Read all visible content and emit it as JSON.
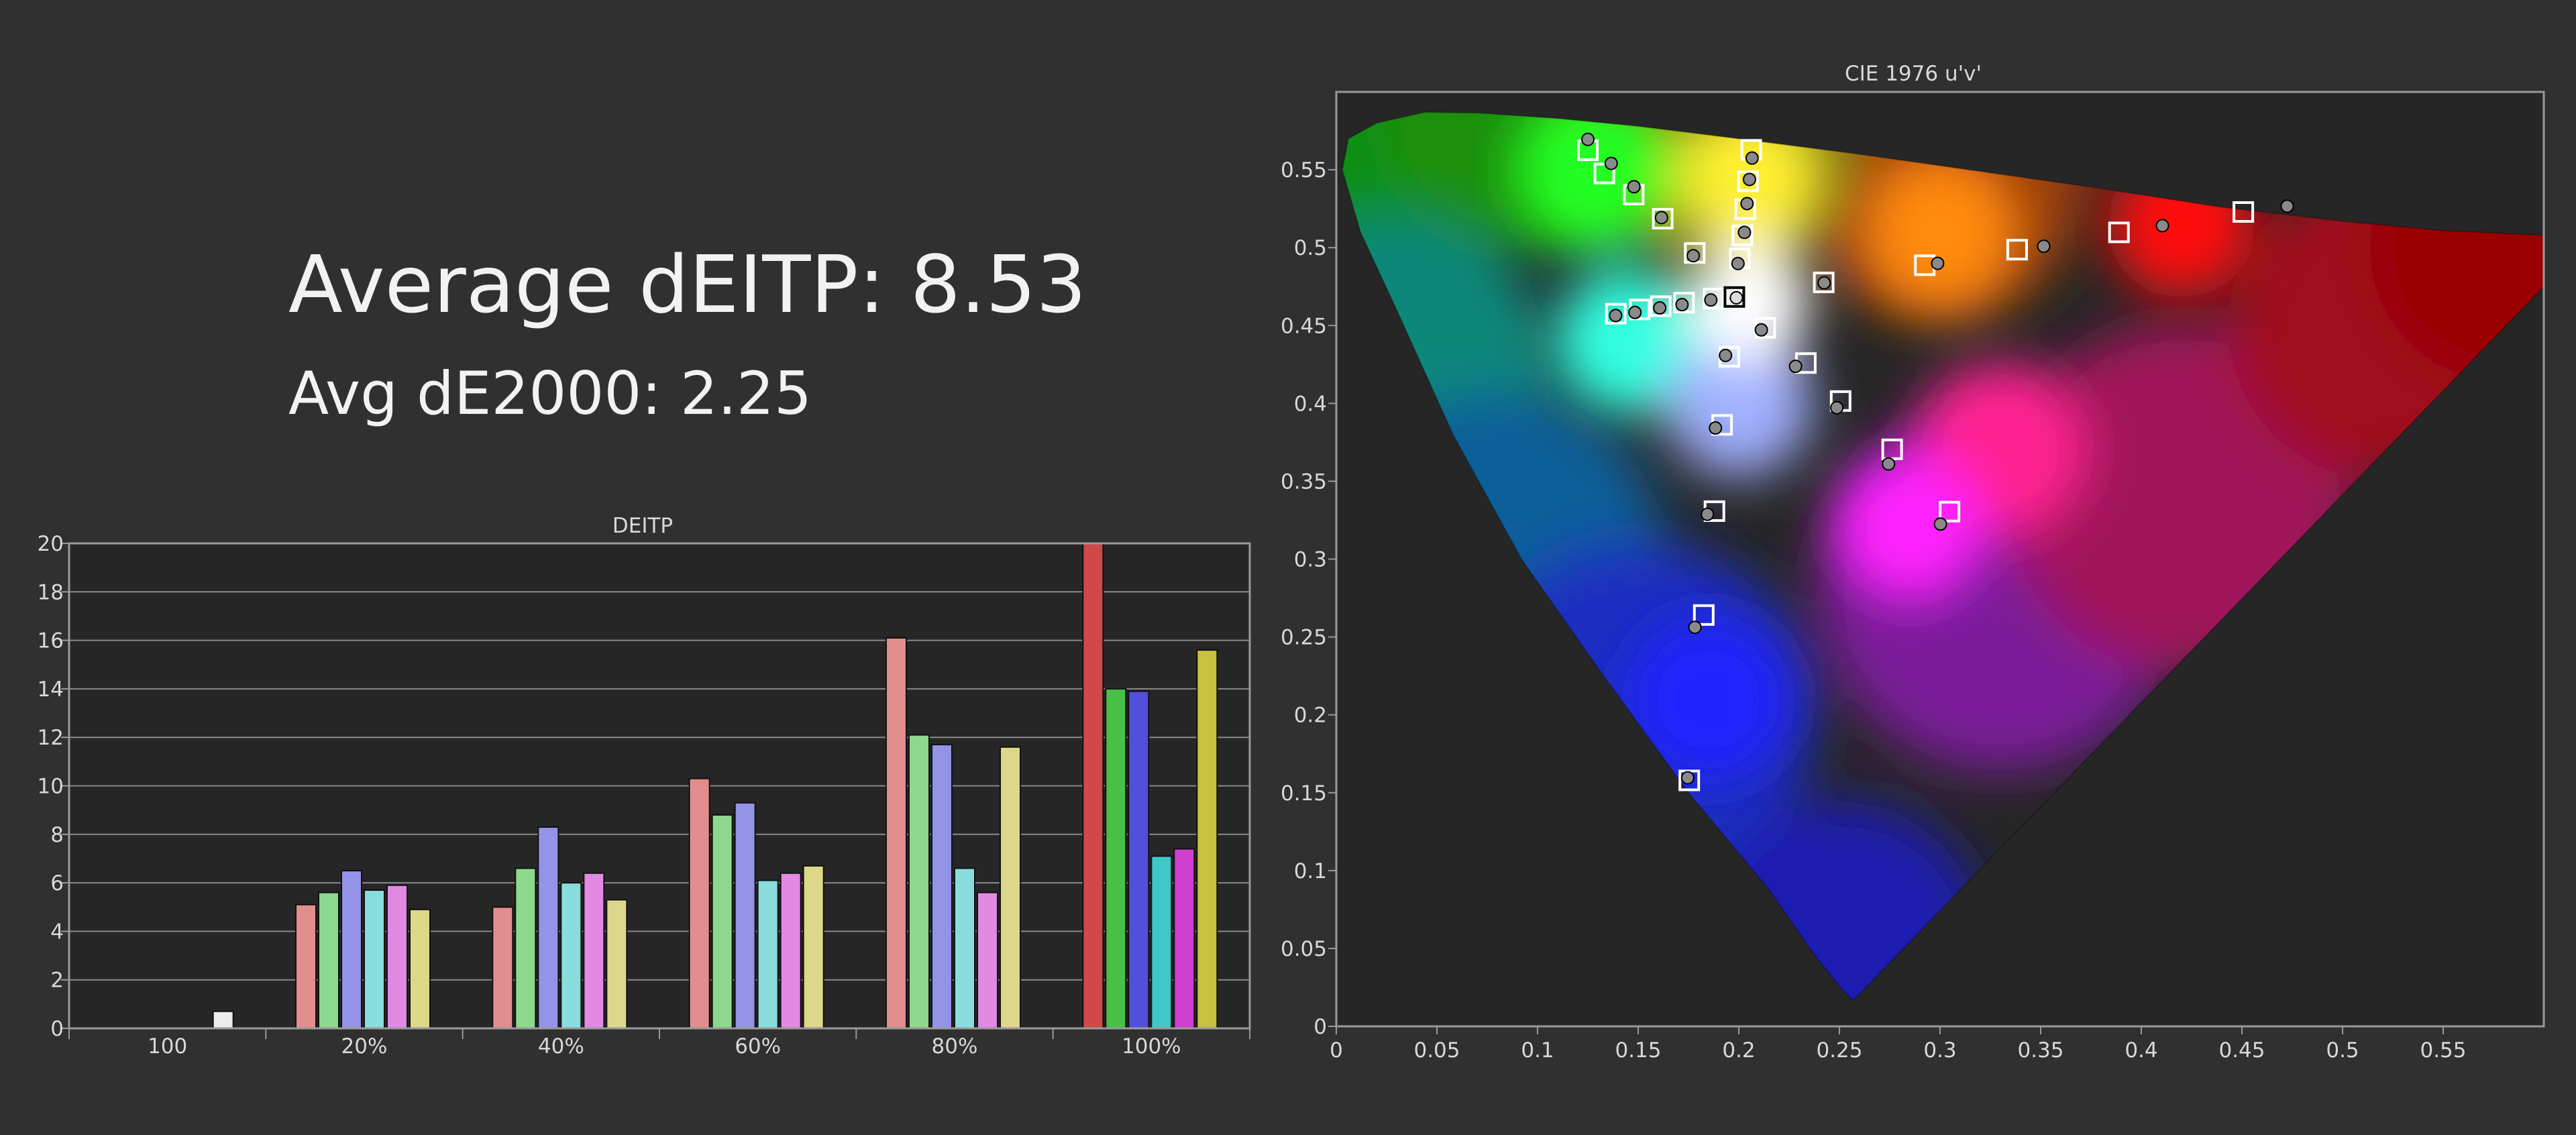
{
  "summary": {
    "avg_eitp_label": "Average dEITP: 8.53",
    "avg_de2000_label": "Avg dE2000: 2.25"
  },
  "colors": {
    "background": "#303030",
    "plot_background": "#262626",
    "grid": "#8a8a8a",
    "text": "#d8d8d8"
  },
  "chart_data": [
    {
      "type": "bar",
      "title": "DEITP",
      "xlabel": "",
      "ylabel": "",
      "ylim": [
        0,
        20
      ],
      "yticks": [
        0,
        2,
        4,
        6,
        8,
        10,
        12,
        14,
        16,
        18,
        20
      ],
      "grid": true,
      "categories": [
        "100",
        "20%",
        "40%",
        "60%",
        "80%",
        "100%"
      ],
      "series": [
        {
          "color": "#d04848",
          "values": [
            null,
            5.1,
            5.0,
            10.3,
            16.1,
            20.0
          ]
        },
        {
          "color": "#48c048",
          "values": [
            null,
            5.6,
            6.6,
            8.8,
            12.1,
            14.0
          ]
        },
        {
          "color": "#5050d8",
          "values": [
            null,
            6.5,
            8.3,
            9.3,
            11.7,
            13.9
          ]
        },
        {
          "color": "#40c8c8",
          "values": [
            null,
            5.7,
            6.0,
            6.1,
            6.6,
            7.1
          ]
        },
        {
          "color": "#d040d0",
          "values": [
            null,
            5.9,
            6.4,
            6.4,
            5.6,
            7.4
          ]
        },
        {
          "color": "#c8c040",
          "values": [
            0.7,
            4.9,
            5.3,
            6.7,
            11.6,
            15.6
          ]
        }
      ]
    },
    {
      "type": "scatter",
      "title": "CIE 1976 u'v'",
      "xlabel": "",
      "ylabel": "",
      "xlim": [
        0,
        0.6
      ],
      "ylim": [
        0,
        0.6
      ],
      "xticks": [
        0,
        0.05,
        0.1,
        0.15,
        0.2,
        0.25,
        0.3,
        0.35,
        0.4,
        0.45,
        0.5,
        0.55
      ],
      "yticks": [
        0,
        0.05,
        0.1,
        0.15,
        0.2,
        0.25,
        0.3,
        0.35,
        0.4,
        0.45,
        0.5,
        0.55
      ],
      "grid": false,
      "gamut_triangle": {
        "red": [
          0.4507,
          0.5229
        ],
        "green": [
          0.125,
          0.5625
        ],
        "blue": [
          0.1754,
          0.1579
        ]
      },
      "white_point": [
        0.1978,
        0.4683
      ],
      "targets": [
        [
          0.4507,
          0.5229
        ],
        [
          0.3889,
          0.5098
        ],
        [
          0.3383,
          0.4987
        ],
        [
          0.2924,
          0.4887
        ],
        [
          0.2422,
          0.4777
        ],
        [
          0.125,
          0.5625
        ],
        [
          0.1332,
          0.5476
        ],
        [
          0.1478,
          0.5341
        ],
        [
          0.1622,
          0.5186
        ],
        [
          0.1781,
          0.4966
        ],
        [
          0.1754,
          0.1579
        ],
        [
          0.1826,
          0.2641
        ],
        [
          0.1879,
          0.3308
        ],
        [
          0.1917,
          0.3862
        ],
        [
          0.1953,
          0.4299
        ],
        [
          0.2062,
          0.5628
        ],
        [
          0.2046,
          0.5426
        ],
        [
          0.2032,
          0.5247
        ],
        [
          0.2018,
          0.5079
        ],
        [
          0.2005,
          0.4931
        ],
        [
          0.1389,
          0.4576
        ],
        [
          0.1508,
          0.4603
        ],
        [
          0.1612,
          0.4624
        ],
        [
          0.1728,
          0.4647
        ],
        [
          0.1875,
          0.4673
        ],
        [
          0.3047,
          0.3305
        ],
        [
          0.2762,
          0.3705
        ],
        [
          0.2506,
          0.4015
        ],
        [
          0.2333,
          0.4259
        ],
        [
          0.2131,
          0.4485
        ]
      ],
      "measured": [
        [
          0.4725,
          0.5266
        ],
        [
          0.4105,
          0.5141
        ],
        [
          0.3515,
          0.5009
        ],
        [
          0.2988,
          0.4899
        ],
        [
          0.2424,
          0.4774
        ],
        [
          0.125,
          0.5695
        ],
        [
          0.1366,
          0.5541
        ],
        [
          0.1479,
          0.5391
        ],
        [
          0.1616,
          0.5193
        ],
        [
          0.1774,
          0.4948
        ],
        [
          0.1746,
          0.1596
        ],
        [
          0.1782,
          0.2562
        ],
        [
          0.1844,
          0.3288
        ],
        [
          0.1884,
          0.3842
        ],
        [
          0.1934,
          0.4308
        ],
        [
          0.2066,
          0.5575
        ],
        [
          0.2053,
          0.5438
        ],
        [
          0.2041,
          0.5283
        ],
        [
          0.2028,
          0.5098
        ],
        [
          0.1996,
          0.4898
        ],
        [
          0.1388,
          0.4564
        ],
        [
          0.1484,
          0.4584
        ],
        [
          0.1607,
          0.4613
        ],
        [
          0.1718,
          0.4634
        ],
        [
          0.1861,
          0.4664
        ],
        [
          0.3002,
          0.3225
        ],
        [
          0.2744,
          0.3611
        ],
        [
          0.2487,
          0.3972
        ],
        [
          0.2282,
          0.4238
        ],
        [
          0.2112,
          0.4472
        ]
      ],
      "measured_white": [
        0.1988,
        0.4678
      ]
    }
  ]
}
